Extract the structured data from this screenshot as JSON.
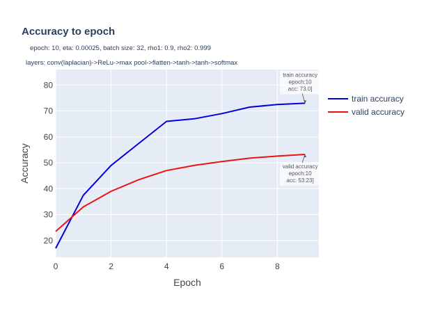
{
  "chart_data": {
    "type": "line",
    "title": "Accuracy to epoch",
    "subtitle_lines": [
      "epoch: 10, eta: 0.00025, batch size: 32, rho1: 0.9, rho2: 0.999",
      "layers: conv(laplacian)->ReLu->max pool->flatten->tanh->tanh->softmax"
    ],
    "xlabel": "Epoch",
    "ylabel": "Accuracy",
    "xlim": [
      0,
      9.5
    ],
    "ylim": [
      13.5,
      86
    ],
    "xticks": [
      0,
      2,
      4,
      6,
      8
    ],
    "yticks": [
      20,
      30,
      40,
      50,
      60,
      70,
      80
    ],
    "grid": true,
    "legend_position": "top-right",
    "x": [
      0,
      1,
      2,
      3,
      4,
      5,
      6,
      7,
      8,
      9
    ],
    "series": [
      {
        "name": "train accuracy",
        "color": "#0000dd",
        "values": [
          17,
          37.5,
          49,
          57.5,
          66,
          67,
          69,
          71.5,
          72.5,
          73
        ]
      },
      {
        "name": "valid accuracy",
        "color": "#ee1111",
        "values": [
          23.5,
          33,
          39,
          43.5,
          47,
          49,
          50.5,
          51.8,
          52.6,
          53.23
        ]
      }
    ],
    "annotations": [
      {
        "series": 0,
        "x": 9,
        "y": 73.0,
        "lines": [
          "train accuracy",
          "epoch:10",
          "acc: 73.0]"
        ],
        "placement": "above"
      },
      {
        "series": 1,
        "x": 9,
        "y": 53.23,
        "lines": [
          "valid accuracy",
          "epoch:10",
          "acc: 53.23]"
        ],
        "placement": "below"
      }
    ]
  }
}
